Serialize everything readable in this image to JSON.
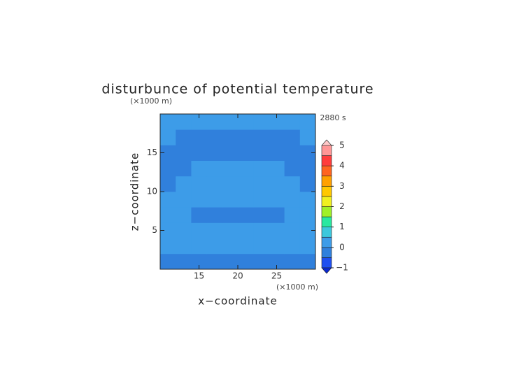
{
  "chart_data": {
    "type": "contour",
    "title": "disturbunce of potential temperature",
    "time_label": "2880 s",
    "x_label": "x−coordinate",
    "y_label": "z−coordinate",
    "x_unit": "(×1000 m)",
    "y_unit": "(×1000 m)",
    "xlim": [
      10,
      30
    ],
    "ylim": [
      0,
      20
    ],
    "xticks": [
      15,
      20,
      25
    ],
    "yticks": [
      5,
      10,
      15
    ],
    "x": [
      11,
      13,
      15,
      17,
      19,
      21,
      23,
      25,
      27,
      29
    ],
    "y": [
      1,
      3,
      5,
      7,
      9,
      11,
      13,
      15,
      17,
      19
    ],
    "z": [
      [
        -0.3,
        -0.3,
        -0.3,
        -0.3,
        -0.3,
        -0.3,
        -0.3,
        -0.3,
        -0.3,
        -0.3
      ],
      [
        0.2,
        0.2,
        0.2,
        0.2,
        0.2,
        0.2,
        0.2,
        0.2,
        0.2,
        0.2
      ],
      [
        0.2,
        0.2,
        0.2,
        0.2,
        0.2,
        0.2,
        0.2,
        0.2,
        0.2,
        0.2
      ],
      [
        0.2,
        0.2,
        -0.3,
        -0.3,
        -0.3,
        -0.3,
        -0.3,
        -0.3,
        0.2,
        0.2
      ],
      [
        0.2,
        0.2,
        0.2,
        0.2,
        0.2,
        0.2,
        0.2,
        0.2,
        0.2,
        0.2
      ],
      [
        -0.3,
        0.2,
        0.2,
        0.2,
        0.2,
        0.2,
        0.2,
        0.2,
        0.2,
        -0.3
      ],
      [
        -0.3,
        -0.3,
        0.2,
        0.2,
        0.2,
        0.2,
        0.2,
        0.2,
        -0.3,
        -0.3
      ],
      [
        -0.3,
        -0.3,
        -0.3,
        -0.3,
        -0.3,
        -0.3,
        -0.3,
        -0.3,
        -0.3,
        -0.3
      ],
      [
        0.2,
        -0.3,
        -0.3,
        -0.3,
        -0.3,
        -0.3,
        -0.3,
        -0.3,
        -0.3,
        0.2
      ],
      [
        0.2,
        0.2,
        0.2,
        0.2,
        0.2,
        0.2,
        0.2,
        0.2,
        0.2,
        0.2
      ]
    ],
    "levels": [
      -1,
      -0.5,
      0,
      0.5,
      1,
      1.5,
      2,
      2.5,
      3,
      3.5,
      4,
      4.5,
      5
    ],
    "colors": [
      "#1f4ff0",
      "#3080dc",
      "#3d9ce8",
      "#3cc8dc",
      "#28e8a0",
      "#a0f028",
      "#f0f020",
      "#ffc800",
      "#ffa000",
      "#ff6420",
      "#ff3c3c",
      "#ff9696"
    ],
    "under_color": "#0a28d2",
    "over_color": "#ffc8c8",
    "cbar_ticks": [
      {
        "value": -1,
        "label": "−1"
      },
      0,
      1,
      2,
      3,
      4,
      5
    ]
  }
}
